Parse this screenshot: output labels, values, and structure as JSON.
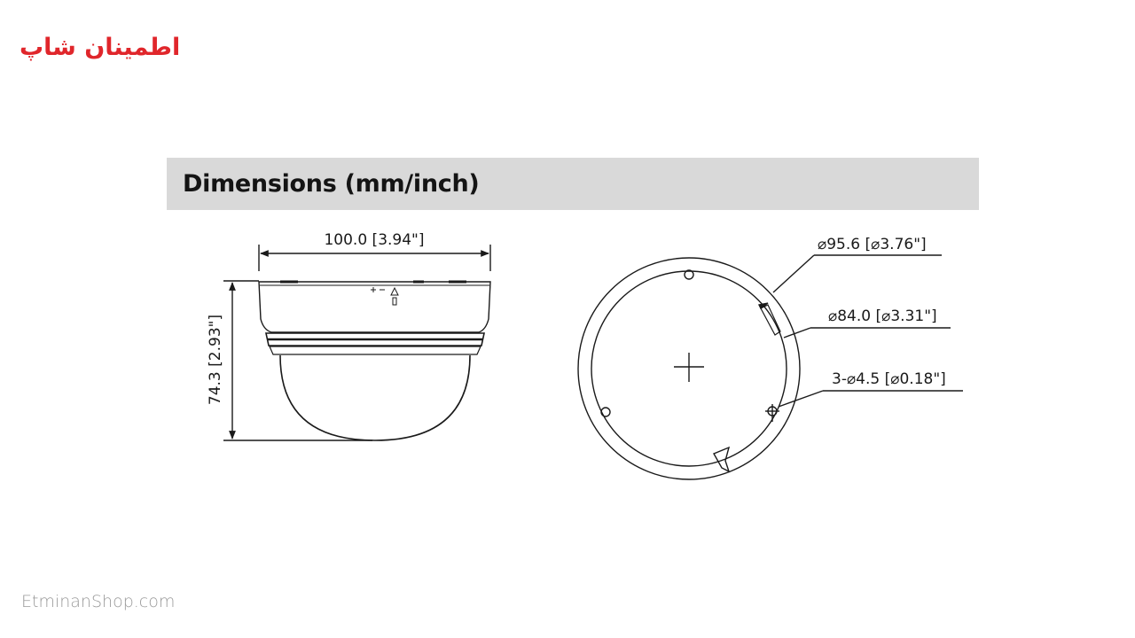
{
  "brand": {
    "logo_text": "اطمینان شاپ",
    "logo_color": "#e0262b",
    "footer_text": "EtminanShop.com"
  },
  "header": {
    "title": "Dimensions (mm/inch)"
  },
  "side_view": {
    "width_label": "100.0 [3.94\"]",
    "height_label": "74.3 [2.93\"]"
  },
  "top_view": {
    "outer_diameter_label": "⌀95.6 [⌀3.76\"]",
    "inner_diameter_label": "⌀84.0 [⌀3.31\"]",
    "hole_label": "3-⌀4.5 [⌀0.18\"]"
  },
  "colors": {
    "header_band": "#d9d9d9",
    "line": "#1a1a1a"
  }
}
